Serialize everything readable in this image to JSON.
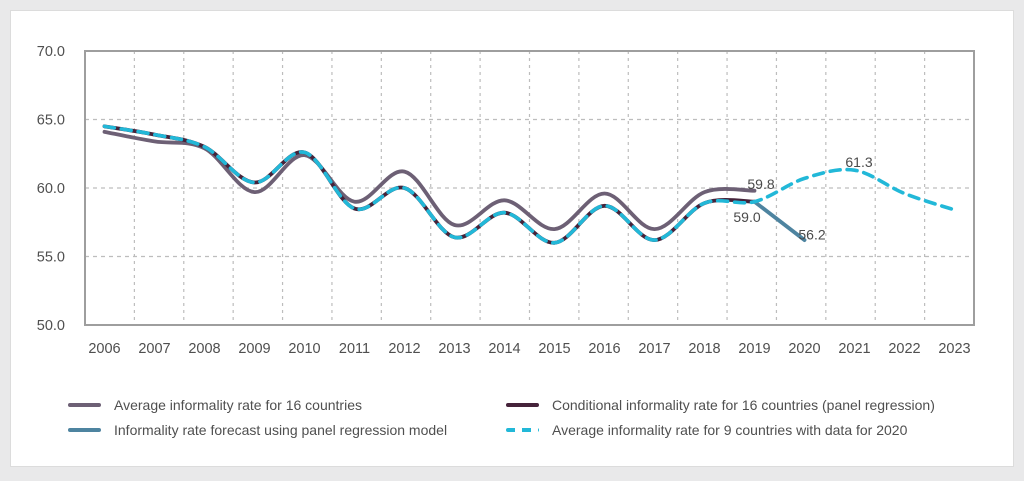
{
  "page": {
    "background_color": "#e9e9ea",
    "card_color": "#ffffff",
    "plot_border_color": "#9e9e9e",
    "gridline_color": "#bdbdbd",
    "axis_label_color": "#4f4f4f",
    "annotation_color": "#4a4a4a"
  },
  "chart_data": {
    "type": "line",
    "title": "",
    "xlabel": "",
    "ylabel": "",
    "ylim": [
      50.0,
      70.0
    ],
    "grid": "dashed",
    "legend_position": "bottom",
    "x_years": [
      2006,
      2007,
      2008,
      2009,
      2010,
      2011,
      2012,
      2013,
      2014,
      2015,
      2016,
      2017,
      2018,
      2019,
      2020,
      2021,
      2022,
      2023
    ],
    "x_tick_labels": [
      "2006",
      "2007",
      "2008",
      "2009",
      "2010",
      "2011",
      "2012",
      "2013",
      "2014",
      "2015",
      "2016",
      "2017",
      "2018",
      "2019",
      "2020",
      "2021",
      "2022",
      "2023"
    ],
    "y_ticks": [
      {
        "label": "70.0",
        "value": 70.0
      },
      {
        "label": "65.0",
        "value": 65.0
      },
      {
        "label": "60.0",
        "value": 60.0
      },
      {
        "label": "55.0",
        "value": 55.0
      },
      {
        "label": "50.0",
        "value": 50.0
      }
    ],
    "series": [
      {
        "name": "Average informality rate for 16 countries",
        "color": "#6d6075",
        "style": "solid",
        "width": 3.8,
        "x_start": 2006,
        "values": [
          64.1,
          63.4,
          62.9,
          59.7,
          62.4,
          59.0,
          61.2,
          57.3,
          59.1,
          57.0,
          59.6,
          57.0,
          59.7,
          59.8
        ]
      },
      {
        "name": "Conditional informality rate for 16 countries (panel regression)",
        "color": "#45233a",
        "style": "solid",
        "width": 3.8,
        "x_start": 2006,
        "values": [
          64.5,
          63.9,
          63.0,
          60.4,
          62.6,
          58.5,
          60.0,
          56.4,
          58.2,
          56.0,
          58.7,
          56.2,
          58.9,
          59.0
        ]
      },
      {
        "name": "Informality rate forecast using panel regression model",
        "color": "#4e84a0",
        "style": "solid",
        "width": 3.8,
        "x_start": 2019,
        "values": [
          59.0,
          56.2
        ]
      },
      {
        "name": "Average informality rate for 9 countries with data for 2020",
        "color": "#22b8d8",
        "style": "dashed",
        "width": 3.6,
        "x_start": 2006,
        "values": [
          64.5,
          63.9,
          63.0,
          60.4,
          62.6,
          58.5,
          60.0,
          56.4,
          58.2,
          56.0,
          58.7,
          56.2,
          58.9,
          59.0,
          60.7,
          61.3,
          59.6,
          58.4
        ]
      }
    ],
    "annotations": [
      {
        "text": "59.8",
        "year": 2019.13,
        "value": 60.3
      },
      {
        "text": "59.0",
        "year": 2018.85,
        "value": 57.9
      },
      {
        "text": "56.2",
        "year": 2020.15,
        "value": 56.6
      },
      {
        "text": "61.3",
        "year": 2021.09,
        "value": 61.9
      }
    ]
  },
  "legend": {
    "columns": [
      {
        "items": [
          {
            "label": "Average informality rate for 16 countries",
            "series_index": 0
          },
          {
            "label": "Informality rate forecast using panel regression model",
            "series_index": 2
          }
        ]
      },
      {
        "items": [
          {
            "label": "Conditional informality rate for 16 countries (panel regression)",
            "series_index": 1
          },
          {
            "label": "Average informality rate for 9 countries with data for 2020",
            "series_index": 3
          }
        ]
      }
    ]
  }
}
